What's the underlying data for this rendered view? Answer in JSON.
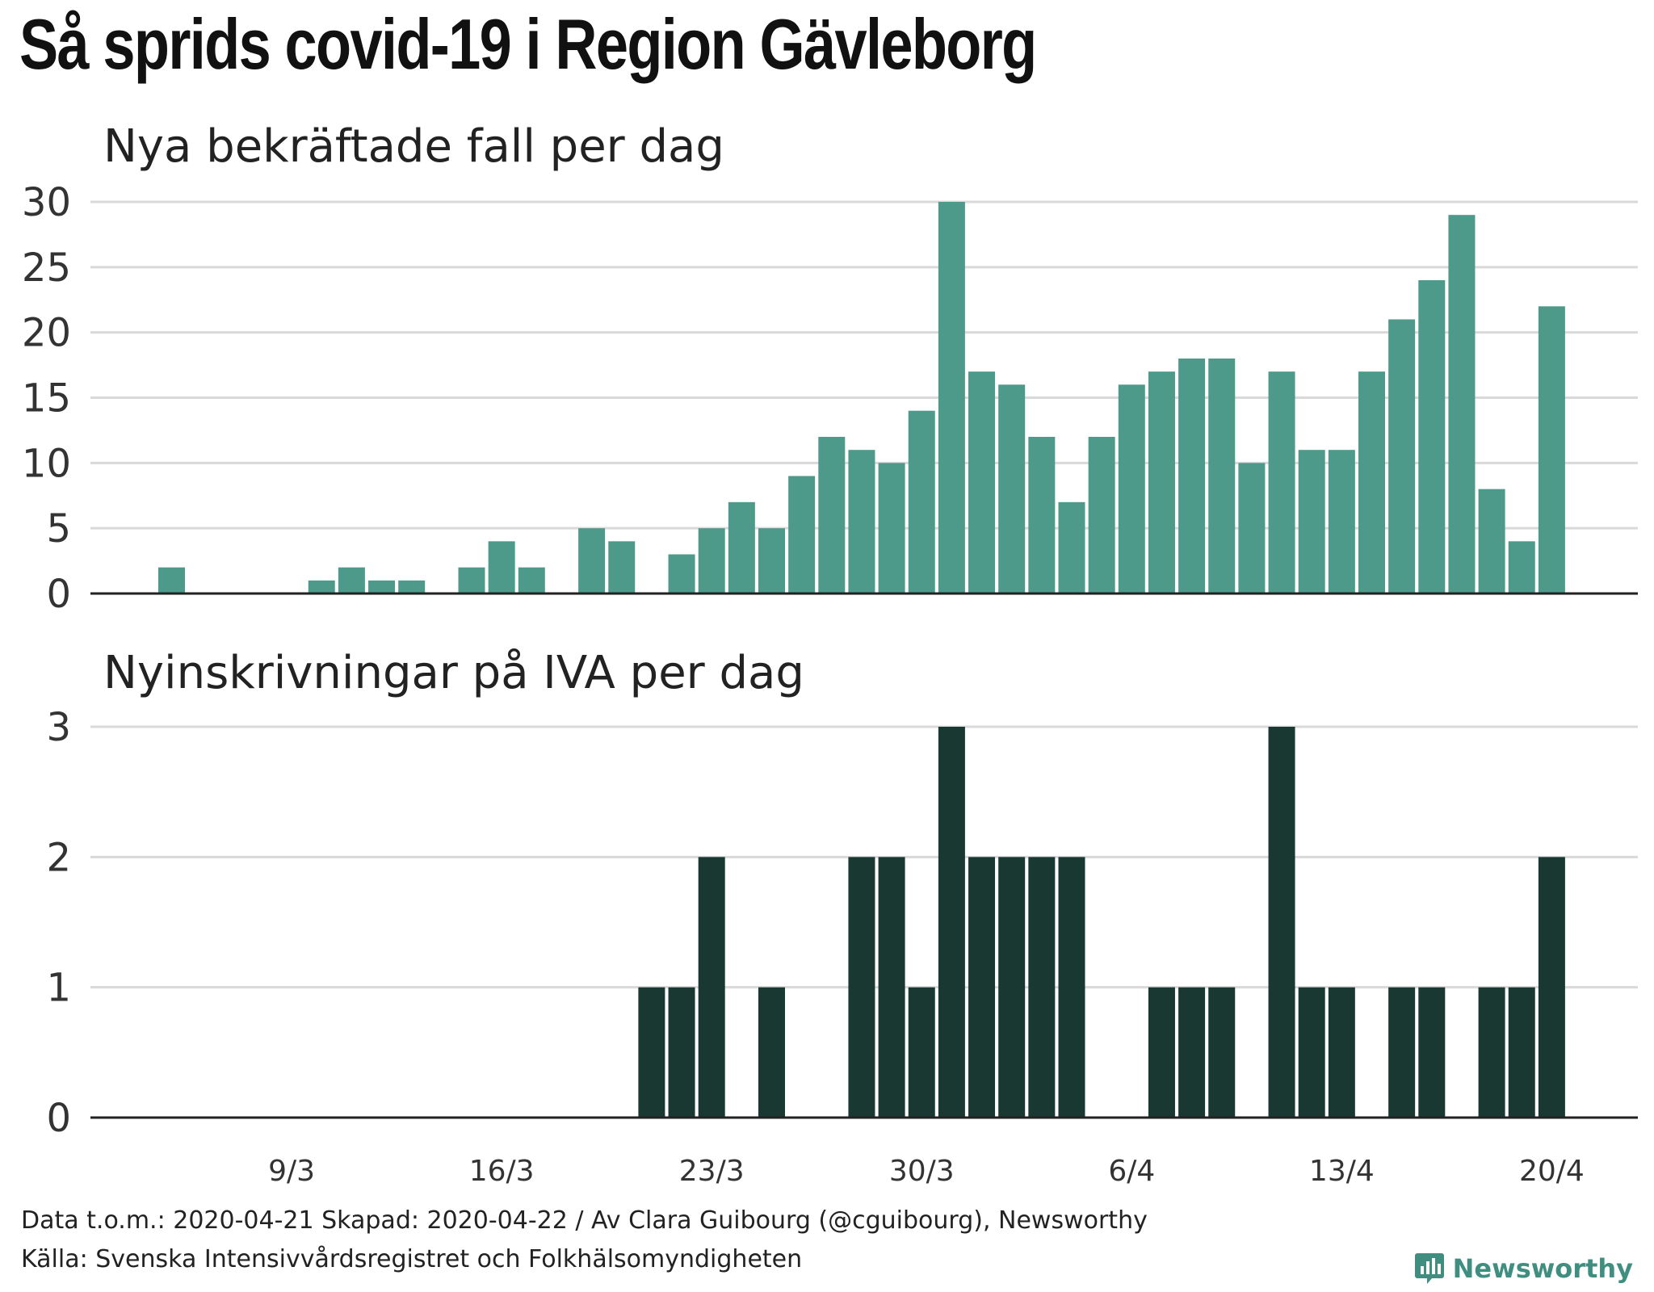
{
  "title": "Så sprids covid-19 i Region Gävleborg",
  "footer": {
    "line1": "Data t.o.m.: 2020-04-21 Skapad: 2020-04-22 / Av Clara Guibourg (@cguibourg), Newsworthy",
    "line2": "Källa: Svenska Intensivvårdsregistret och Folkhälsomyndigheten"
  },
  "brand": {
    "name": "Newsworthy",
    "icon": "bar-chart-icon",
    "color": "#3f8e80"
  },
  "chart_data": [
    {
      "type": "bar",
      "title": "Nya bekräftade fall per dag",
      "color": "#4e9a8a",
      "ylim": [
        0,
        30
      ],
      "yticks": [
        0,
        5,
        10,
        15,
        20,
        25,
        30
      ],
      "x": [
        "2020-03-05",
        "2020-03-06",
        "2020-03-07",
        "2020-03-08",
        "2020-03-09",
        "2020-03-10",
        "2020-03-11",
        "2020-03-12",
        "2020-03-13",
        "2020-03-14",
        "2020-03-15",
        "2020-03-16",
        "2020-03-17",
        "2020-03-18",
        "2020-03-19",
        "2020-03-20",
        "2020-03-21",
        "2020-03-22",
        "2020-03-23",
        "2020-03-24",
        "2020-03-25",
        "2020-03-26",
        "2020-03-27",
        "2020-03-28",
        "2020-03-29",
        "2020-03-30",
        "2020-03-31",
        "2020-04-01",
        "2020-04-02",
        "2020-04-03",
        "2020-04-04",
        "2020-04-05",
        "2020-04-06",
        "2020-04-07",
        "2020-04-08",
        "2020-04-09",
        "2020-04-10",
        "2020-04-11",
        "2020-04-12",
        "2020-04-13",
        "2020-04-14",
        "2020-04-15",
        "2020-04-16",
        "2020-04-17",
        "2020-04-18",
        "2020-04-19",
        "2020-04-20",
        "2020-04-21"
      ],
      "values": [
        2,
        0,
        0,
        0,
        0,
        1,
        2,
        1,
        1,
        0,
        2,
        4,
        2,
        0,
        5,
        4,
        0,
        3,
        5,
        7,
        5,
        9,
        12,
        11,
        10,
        14,
        30,
        17,
        16,
        12,
        7,
        12,
        16,
        17,
        18,
        18,
        10,
        17,
        11,
        11,
        17,
        21,
        24,
        29,
        8,
        4,
        22,
        0
      ],
      "grid": true
    },
    {
      "type": "bar",
      "title": "Nyinskrivningar på IVA per dag",
      "color": "#193832",
      "ylim": [
        0,
        3
      ],
      "yticks": [
        0,
        1,
        2,
        3
      ],
      "x": [
        "2020-03-05",
        "2020-03-06",
        "2020-03-07",
        "2020-03-08",
        "2020-03-09",
        "2020-03-10",
        "2020-03-11",
        "2020-03-12",
        "2020-03-13",
        "2020-03-14",
        "2020-03-15",
        "2020-03-16",
        "2020-03-17",
        "2020-03-18",
        "2020-03-19",
        "2020-03-20",
        "2020-03-21",
        "2020-03-22",
        "2020-03-23",
        "2020-03-24",
        "2020-03-25",
        "2020-03-26",
        "2020-03-27",
        "2020-03-28",
        "2020-03-29",
        "2020-03-30",
        "2020-03-31",
        "2020-04-01",
        "2020-04-02",
        "2020-04-03",
        "2020-04-04",
        "2020-04-05",
        "2020-04-06",
        "2020-04-07",
        "2020-04-08",
        "2020-04-09",
        "2020-04-10",
        "2020-04-11",
        "2020-04-12",
        "2020-04-13",
        "2020-04-14",
        "2020-04-15",
        "2020-04-16",
        "2020-04-17",
        "2020-04-18",
        "2020-04-19",
        "2020-04-20",
        "2020-04-21"
      ],
      "values": [
        0,
        0,
        0,
        0,
        0,
        0,
        0,
        0,
        0,
        0,
        0,
        0,
        0,
        0,
        0,
        0,
        1,
        1,
        2,
        0,
        1,
        0,
        0,
        2,
        2,
        1,
        3,
        2,
        2,
        2,
        2,
        0,
        0,
        1,
        1,
        1,
        0,
        3,
        1,
        1,
        0,
        1,
        1,
        0,
        1,
        1,
        2,
        0
      ],
      "grid": true
    }
  ],
  "xticks": [
    "9/3",
    "16/3",
    "23/3",
    "30/3",
    "6/4",
    "13/4",
    "20/4"
  ]
}
